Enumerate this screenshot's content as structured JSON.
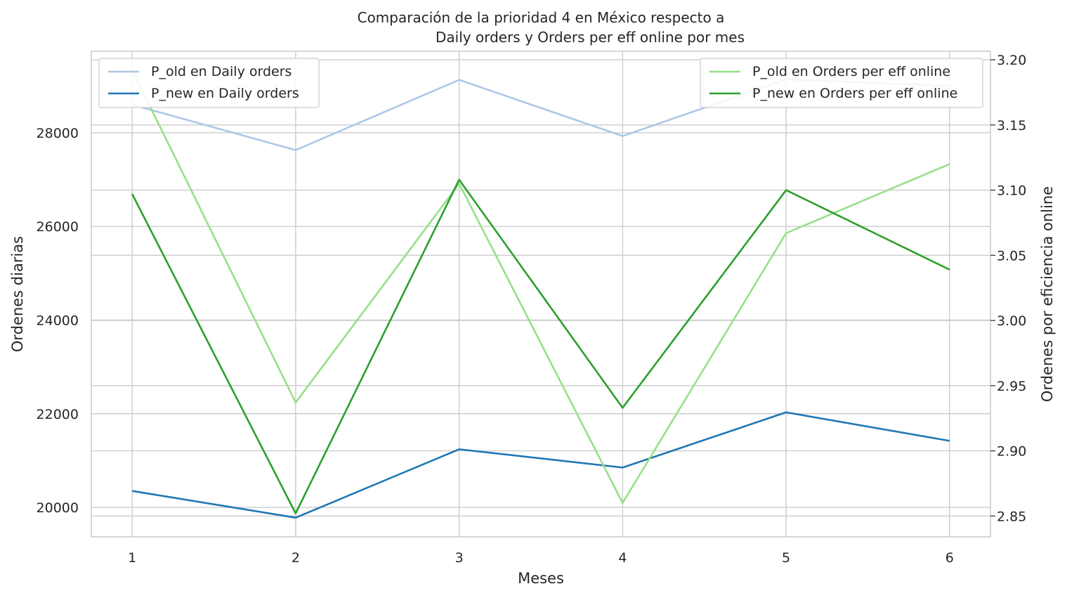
{
  "chart_data": {
    "type": "line",
    "title_lines": [
      "Comparación de la prioridad 4 en México respecto a",
      "Daily orders y Orders per eff online por mes"
    ],
    "xlabel": "Meses",
    "ylabel_left": "Ordenes diarias",
    "ylabel_right": "Ordenes por eficiencia online",
    "x": [
      1,
      2,
      3,
      4,
      5,
      6
    ],
    "x_ticks": [
      "1",
      "2",
      "3",
      "4",
      "5",
      "6"
    ],
    "xlim": [
      0.75,
      6.25
    ],
    "ylim_left": [
      19370,
      29740
    ],
    "ylim_right": [
      2.834,
      3.2065
    ],
    "y_ticks_left": [
      20000,
      22000,
      24000,
      26000,
      28000
    ],
    "y_tick_labels_left": [
      "20000",
      "22000",
      "24000",
      "26000",
      "28000"
    ],
    "y_ticks_right": [
      2.85,
      2.9,
      2.95,
      3.0,
      3.05,
      3.1,
      3.15,
      3.2
    ],
    "y_tick_labels_right": [
      "2.85",
      "2.90",
      "2.95",
      "3.00",
      "3.05",
      "3.10",
      "3.15",
      "3.20"
    ],
    "grid": true,
    "series_left": [
      {
        "name": "P_old en Daily orders",
        "color": "#aec7e8",
        "values": [
          28600,
          27630,
          29130,
          27930,
          29140,
          29000
        ]
      },
      {
        "name": "P_new en Daily orders",
        "color": "#1f77b4",
        "values": [
          20350,
          19780,
          21240,
          20850,
          22030,
          21420
        ]
      }
    ],
    "series_right": [
      {
        "name": "P_old en Orders per eff online",
        "color": "#98df8a",
        "values": [
          3.192,
          2.937,
          3.105,
          2.86,
          3.067,
          3.12
        ]
      },
      {
        "name": "P_new en Orders per eff online",
        "color": "#2ca02c",
        "values": [
          3.097,
          2.852,
          3.108,
          2.933,
          3.1,
          3.039
        ]
      }
    ],
    "legend_left_placement": "top-left",
    "legend_right_placement": "top-right"
  }
}
